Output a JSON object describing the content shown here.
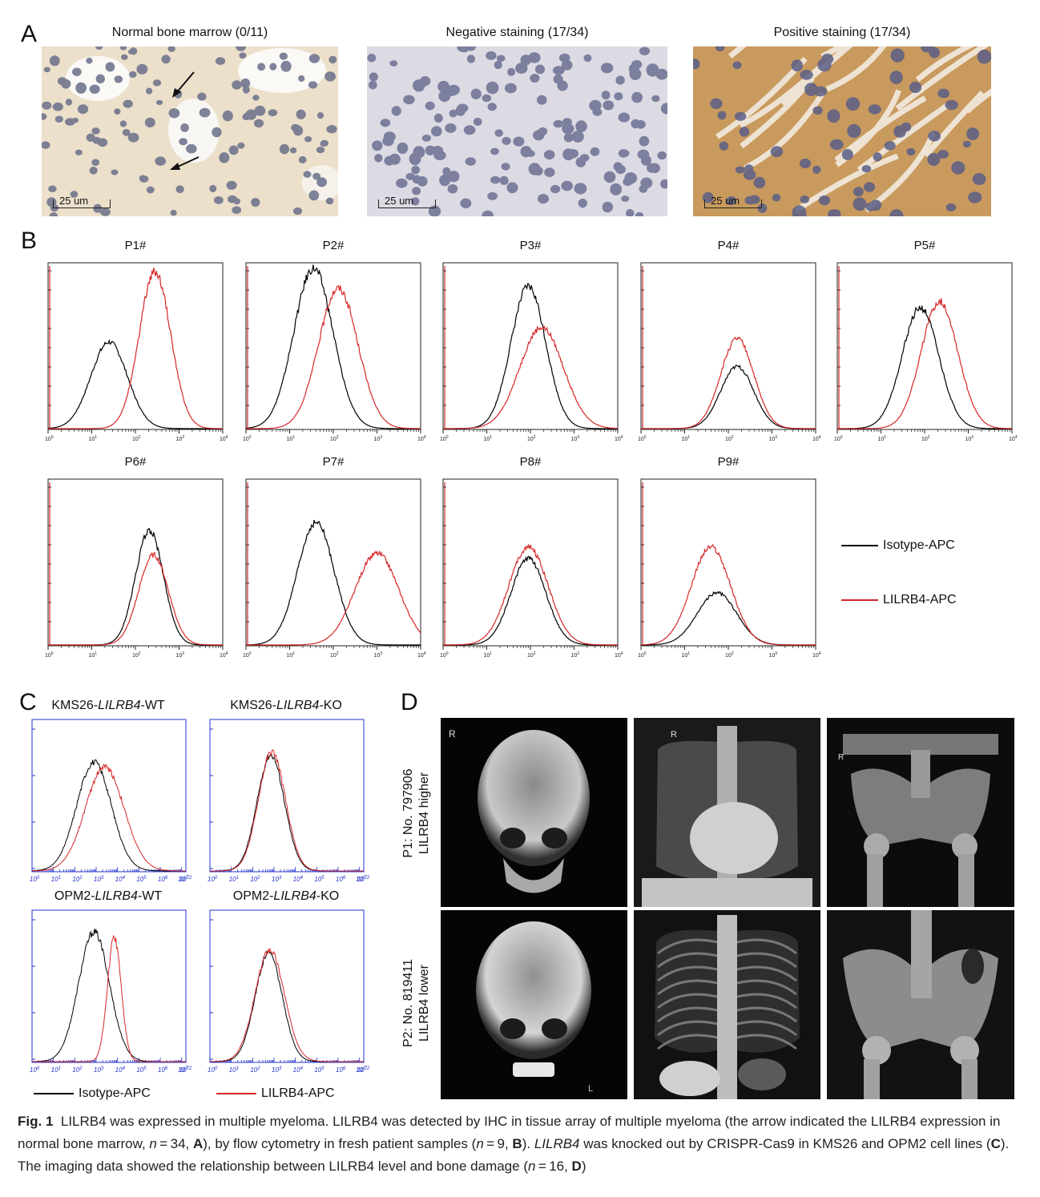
{
  "panel_a": {
    "letter": "A",
    "images": [
      {
        "title": "Normal bone marrow (0/11)",
        "scale": "25 um"
      },
      {
        "title": "Negative staining (17/34)",
        "scale": "25 um"
      },
      {
        "title": "Positive staining (17/34)",
        "scale": "25 um"
      }
    ]
  },
  "panel_b": {
    "letter": "B",
    "legend": [
      {
        "label": "Isotype-APC",
        "color": "#000000"
      },
      {
        "label": "LILRB4-APC",
        "color": "#d62728"
      }
    ],
    "chart_data": [
      {
        "type": "line",
        "title": "P1#",
        "x_scale": "log",
        "xlim": [
          1,
          10000
        ],
        "series": [
          {
            "color": "#000000",
            "peak_x": 25,
            "peak_height": 0.53,
            "width": 0.42
          },
          {
            "color": "#d62728",
            "peak_x": 280,
            "peak_height": 0.96,
            "width": 0.36
          }
        ]
      },
      {
        "type": "line",
        "title": "P2#",
        "x_scale": "log",
        "xlim": [
          1,
          10000
        ],
        "series": [
          {
            "color": "#000000",
            "peak_x": 35,
            "peak_height": 0.98,
            "width": 0.45
          },
          {
            "color": "#d62728",
            "peak_x": 130,
            "peak_height": 0.86,
            "width": 0.45
          }
        ]
      },
      {
        "type": "line",
        "title": "P3#",
        "x_scale": "log",
        "xlim": [
          1,
          10000
        ],
        "series": [
          {
            "color": "#000000",
            "peak_x": 90,
            "peak_height": 0.87,
            "width": 0.4
          },
          {
            "color": "#d62728",
            "peak_x": 180,
            "peak_height": 0.62,
            "width": 0.5
          }
        ]
      },
      {
        "type": "line",
        "title": "P4#",
        "x_scale": "log",
        "xlim": [
          1,
          10000
        ],
        "series": [
          {
            "color": "#000000",
            "peak_x": 160,
            "peak_height": 0.38,
            "width": 0.38
          },
          {
            "color": "#d62728",
            "peak_x": 160,
            "peak_height": 0.55,
            "width": 0.38
          }
        ]
      },
      {
        "type": "line",
        "title": "P5#",
        "x_scale": "log",
        "xlim": [
          1,
          10000
        ],
        "series": [
          {
            "color": "#000000",
            "peak_x": 80,
            "peak_height": 0.74,
            "width": 0.42
          },
          {
            "color": "#d62728",
            "peak_x": 220,
            "peak_height": 0.78,
            "width": 0.42
          }
        ]
      },
      {
        "type": "line",
        "title": "P6#",
        "x_scale": "log",
        "xlim": [
          1,
          10000
        ],
        "series": [
          {
            "color": "#000000",
            "peak_x": 210,
            "peak_height": 0.7,
            "width": 0.32
          },
          {
            "color": "#d62728",
            "peak_x": 260,
            "peak_height": 0.55,
            "width": 0.34
          }
        ]
      },
      {
        "type": "line",
        "title": "P7#",
        "x_scale": "log",
        "xlim": [
          1,
          10000
        ],
        "series": [
          {
            "color": "#000000",
            "peak_x": 40,
            "peak_height": 0.75,
            "width": 0.42
          },
          {
            "color": "#d62728",
            "peak_x": 1000,
            "peak_height": 0.56,
            "width": 0.5
          }
        ]
      },
      {
        "type": "line",
        "title": "P8#",
        "x_scale": "log",
        "xlim": [
          1,
          10000
        ],
        "series": [
          {
            "color": "#000000",
            "peak_x": 90,
            "peak_height": 0.53,
            "width": 0.4
          },
          {
            "color": "#d62728",
            "peak_x": 90,
            "peak_height": 0.6,
            "width": 0.45
          }
        ]
      },
      {
        "type": "line",
        "title": "P9#",
        "x_scale": "log",
        "xlim": [
          1,
          10000
        ],
        "series": [
          {
            "color": "#000000",
            "peak_x": 55,
            "peak_height": 0.32,
            "width": 0.45
          },
          {
            "color": "#d62728",
            "peak_x": 40,
            "peak_height": 0.6,
            "width": 0.45
          }
        ]
      }
    ]
  },
  "panel_c": {
    "letter": "C",
    "legend": [
      {
        "label": "Isotype-APC",
        "color": "#000000"
      },
      {
        "label": "LILRB4-APC",
        "color": "#d62728"
      }
    ],
    "chart_data": [
      {
        "type": "line",
        "title_prefix": "KMS26-",
        "title_gene": "LILRB4",
        "title_suffix": "-WT",
        "x_scale": "log",
        "xlim_exp": [
          0,
          7.2
        ],
        "series": [
          {
            "color": "#000000",
            "peak_exp": 2.9,
            "peak_height": 0.73,
            "width": 0.45
          },
          {
            "color": "#d62728",
            "peak_exp": 3.4,
            "peak_height": 0.7,
            "width": 0.5
          }
        ]
      },
      {
        "type": "line",
        "title_prefix": "KMS26-",
        "title_gene": "LILRB4",
        "title_suffix": "-KO",
        "x_scale": "log",
        "xlim_exp": [
          0,
          7.2
        ],
        "series": [
          {
            "color": "#000000",
            "peak_exp": 2.85,
            "peak_height": 0.78,
            "width": 0.35
          },
          {
            "color": "#d62728",
            "peak_exp": 2.9,
            "peak_height": 0.8,
            "width": 0.35
          }
        ]
      },
      {
        "type": "line",
        "title_prefix": "OPM2-",
        "title_gene": "LILRB4",
        "title_suffix": "-WT",
        "x_scale": "log",
        "xlim_exp": [
          0,
          7.2
        ],
        "series": [
          {
            "color": "#000000",
            "peak_exp": 2.9,
            "peak_height": 0.87,
            "width": 0.4
          },
          {
            "color": "#d62728",
            "peak_exp": 3.85,
            "peak_height": 0.83,
            "width": 0.18
          }
        ]
      },
      {
        "type": "line",
        "title_prefix": "OPM2-",
        "title_gene": "LILRB4",
        "title_suffix": "-KO",
        "x_scale": "log",
        "xlim_exp": [
          0,
          7.2
        ],
        "series": [
          {
            "color": "#000000",
            "peak_exp": 2.75,
            "peak_height": 0.73,
            "width": 0.35
          },
          {
            "color": "#d62728",
            "peak_exp": 2.8,
            "peak_height": 0.75,
            "width": 0.38
          }
        ]
      }
    ]
  },
  "panel_d": {
    "letter": "D",
    "rows": [
      {
        "line1": "P1: No. 797906",
        "line2": "LILRB4 higher"
      },
      {
        "line1": "P2: No. 819411",
        "line2": "LILRB4 lower"
      }
    ]
  },
  "caption": {
    "fig_label": "Fig. 1",
    "t1": "LILRB4 was expressed in multiple myeloma. LILRB4 was detected by IHC in tissue array of multiple myeloma (the arrow indicated the LILRB4 expression in normal bone marrow, ",
    "n1": "n",
    "t2": " = 34, ",
    "A": "A",
    "t3": "), by flow cytometry in fresh patient samples (",
    "n2": "n",
    "t4": " = 9, ",
    "B": "B",
    "t5": "). ",
    "gene": "LILRB4",
    "t6": " was knocked out by CRISPR-Cas9 in KMS26 and OPM2 cell lines (",
    "C": "C",
    "t7": "). The imaging data showed the relationship between LILRB4 level and bone damage (",
    "n3": "n",
    "t8": " = 16, ",
    "D": "D",
    "t9": ")"
  }
}
